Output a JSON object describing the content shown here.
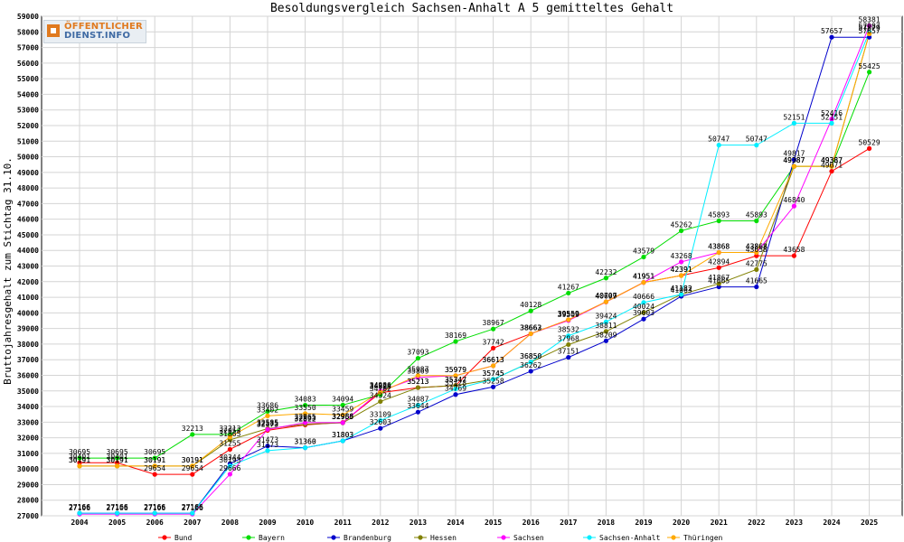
{
  "chart_data": {
    "type": "line",
    "title": "Besoldungsvergleich Sachsen-Anhalt A 5 gemitteltes Gehalt",
    "ylabel": "Bruttojahresgehalt zum Stichtag 31.10.",
    "xlabel": "",
    "ylim": [
      27000,
      59000
    ],
    "y_ticks": [
      27000,
      28000,
      29000,
      30000,
      31000,
      32000,
      33000,
      34000,
      35000,
      36000,
      37000,
      38000,
      39000,
      40000,
      41000,
      42000,
      43000,
      44000,
      45000,
      46000,
      47000,
      48000,
      49000,
      50000,
      51000,
      52000,
      53000,
      54000,
      55000,
      56000,
      57000,
      58000,
      59000
    ],
    "categories": [
      "2004",
      "2005",
      "2006",
      "2007",
      "2008",
      "2009",
      "2010",
      "2011",
      "2012",
      "2013",
      "2014",
      "2015",
      "2016",
      "2017",
      "2018",
      "2019",
      "2020",
      "2021",
      "2022",
      "2023",
      "2024",
      "2025"
    ],
    "grid": true,
    "legend_position": "bottom",
    "series": [
      {
        "name": "Bund",
        "color": "#ff0000",
        "values": [
          30401,
          30401,
          29654,
          29654,
          31255,
          32473,
          32822,
          32986,
          34885,
          35213,
          35347,
          37742,
          38662,
          39559,
          40707,
          41951,
          42391,
          42894,
          43658,
          43658,
          49071,
          50529
        ]
      },
      {
        "name": "Bayern",
        "color": "#00dd00",
        "values": [
          30695,
          30695,
          30695,
          32213,
          32213,
          33686,
          34083,
          34094,
          34762,
          37093,
          38169,
          38967,
          40128,
          41267,
          42232,
          43579,
          45262,
          45893,
          45893,
          49387,
          49387,
          55425
        ]
      },
      {
        "name": "Brandenburg",
        "color": "#0000cc",
        "values": [
          27166,
          27166,
          27166,
          27166,
          30344,
          31473,
          31360,
          31803,
          32603,
          33644,
          34769,
          35258,
          36262,
          37151,
          38209,
          39603,
          41063,
          41665,
          41665,
          49817,
          57657,
          57657
        ]
      },
      {
        "name": "Hessen",
        "color": "#808000",
        "values": [
          30191,
          30191,
          30191,
          30191,
          31865,
          32585,
          32863,
          32953,
          34324,
          35213,
          35347,
          35745,
          36850,
          37968,
          38811,
          40024,
          41182,
          41867,
          42775,
          49387,
          49387,
          57879
        ]
      },
      {
        "name": "Sachsen",
        "color": "#ff00ff",
        "values": [
          27106,
          27106,
          27106,
          27106,
          29666,
          32535,
          32965,
          32965,
          34986,
          35869,
          35979,
          36613,
          38663,
          39509,
          40699,
          41951,
          43268,
          43868,
          43868,
          46840,
          52416,
          58381
        ]
      },
      {
        "name": "Sachsen-Anhalt",
        "color": "#00eeff",
        "values": [
          27166,
          27166,
          27166,
          27166,
          30193,
          31173,
          31360,
          31803,
          33109,
          34087,
          35128,
          35745,
          36850,
          38532,
          39424,
          40666,
          41182,
          50747,
          50747,
          52151,
          52151,
          57987
        ]
      },
      {
        "name": "Thüringen",
        "color": "#ffaa00",
        "values": [
          30191,
          30191,
          30191,
          30191,
          32053,
          33402,
          33550,
          33459,
          34924,
          35987,
          35979,
          36613,
          38663,
          39559,
          40707,
          41951,
          42391,
          43868,
          43868,
          49387,
          49387,
          57879
        ]
      }
    ]
  },
  "logo": {
    "line1": "ÖFFENTLICHER",
    "line2": "DIENST.INFO"
  }
}
